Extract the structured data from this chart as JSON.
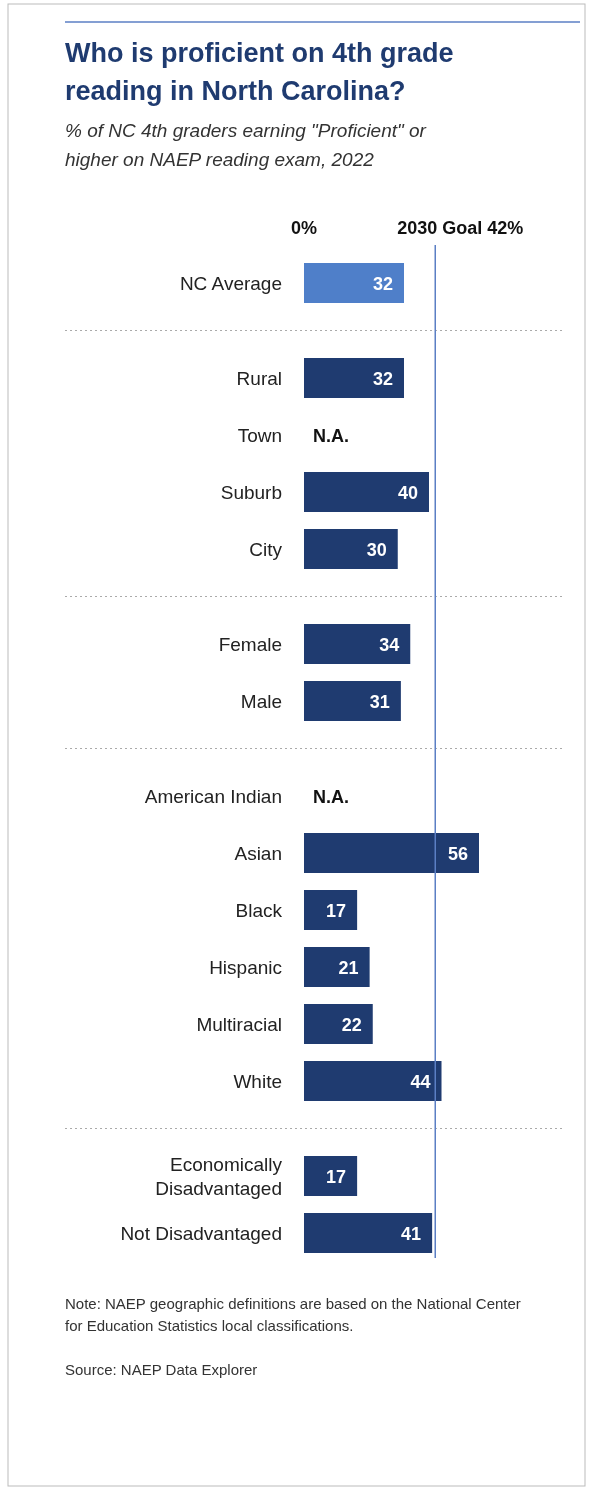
{
  "chart_data": {
    "type": "bar",
    "orientation": "horizontal",
    "title": "Who is proficient on 4th grade reading in North Carolina?",
    "subtitle": "% of NC 4th graders earning \"Proficient\" or higher on NAEP reading exam, 2022",
    "categories": [
      "NC Average",
      "Rural",
      "Town",
      "Suburb",
      "City",
      "Female",
      "Male",
      "American Indian",
      "Asian",
      "Black",
      "Hispanic",
      "Multiracial",
      "White",
      "Economically Disadvantaged",
      "Not Disadvantaged"
    ],
    "values": [
      32,
      32,
      null,
      40,
      30,
      34,
      31,
      null,
      56,
      17,
      21,
      22,
      44,
      17,
      41
    ],
    "colors": [
      "#4f7fc9",
      "#1f3b70",
      "#1f3b70",
      "#1f3b70",
      "#1f3b70",
      "#1f3b70",
      "#1f3b70",
      "#1f3b70",
      "#1f3b70",
      "#1f3b70",
      "#1f3b70",
      "#1f3b70",
      "#1f3b70",
      "#1f3b70",
      "#1f3b70"
    ],
    "value_labels": [
      "32",
      "32",
      "N.A.",
      "40",
      "30",
      "34",
      "31",
      "N.A.",
      "56",
      "17",
      "21",
      "22",
      "44",
      "17",
      "41"
    ],
    "ref_lines": [
      {
        "axis": "x",
        "value": 42,
        "label": "2030 Goal 42%",
        "color": "#5b7fc4"
      }
    ],
    "annotations": [
      "0%",
      "Note: NAEP geographic definitions are based on the National Center for Education Statistics local classifications.",
      "Source: NAEP Data Explorer"
    ]
  }
}
